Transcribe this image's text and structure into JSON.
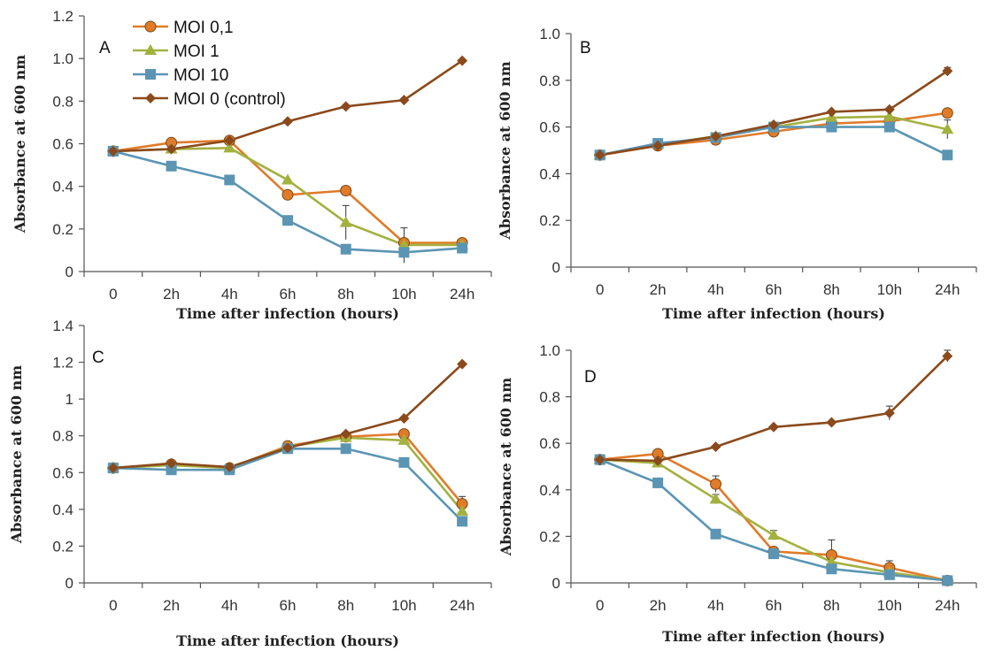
{
  "series_styles": [
    {
      "name": "MOI 0,1",
      "color": "#e07b2a",
      "marker": "circle"
    },
    {
      "name": "MOI 1",
      "color": "#a3b13f",
      "marker": "triangle"
    },
    {
      "name": "MOI 10",
      "color": "#5b95b3",
      "marker": "square"
    },
    {
      "name": "MOI 0 (control)",
      "color": "#8b4a1c",
      "marker": "diamond"
    }
  ],
  "chart_data": [
    {
      "type": "line",
      "panel": "A",
      "xlabel": "Time after infection (hours)",
      "ylabel": "Absorbance at 600 nm",
      "categories": [
        "0",
        "2h",
        "4h",
        "6h",
        "8h",
        "10h",
        "24h"
      ],
      "ylim": [
        0,
        1.2
      ],
      "yticks": [
        "0",
        "0.2",
        "0.4",
        "0.6",
        "0.8",
        "1.0",
        "1.2"
      ],
      "legend": "top-left",
      "series": [
        {
          "name": "MOI 0,1",
          "values": [
            0.565,
            0.605,
            0.615,
            0.36,
            0.38,
            0.135,
            0.135
          ],
          "errors": [
            0,
            0,
            0,
            0,
            0,
            0.07,
            0
          ]
        },
        {
          "name": "MOI 1",
          "values": [
            0.565,
            0.575,
            0.58,
            0.43,
            0.23,
            0.125,
            0.125
          ],
          "errors": [
            0,
            0,
            0,
            0,
            0.08,
            0,
            0
          ]
        },
        {
          "name": "MOI 10",
          "values": [
            0.565,
            0.495,
            0.43,
            0.24,
            0.105,
            0.09,
            0.11
          ],
          "errors": [
            0,
            0,
            0,
            0,
            0,
            0.05,
            0
          ]
        },
        {
          "name": "MOI 0 (control)",
          "values": [
            0.565,
            0.575,
            0.615,
            0.705,
            0.775,
            0.805,
            0.99
          ],
          "errors": [
            0,
            0,
            0,
            0,
            0,
            0,
            0
          ]
        }
      ]
    },
    {
      "type": "line",
      "panel": "B",
      "xlabel": "Time after infection (hours)",
      "ylabel": "Absorbance at 600 nm",
      "categories": [
        "0",
        "2h",
        "4h",
        "6h",
        "8h",
        "10h",
        "24h"
      ],
      "ylim": [
        0,
        1.0
      ],
      "yticks": [
        "0",
        "0.2",
        "0.4",
        "0.6",
        "0.8",
        "1.0"
      ],
      "series": [
        {
          "name": "MOI 0,1",
          "values": [
            0.48,
            0.52,
            0.545,
            0.58,
            0.615,
            0.625,
            0.66
          ],
          "errors": [
            0,
            0,
            0,
            0,
            0,
            0,
            0
          ]
        },
        {
          "name": "MOI 1",
          "values": [
            0.48,
            0.525,
            0.56,
            0.6,
            0.64,
            0.645,
            0.59
          ],
          "errors": [
            0,
            0,
            0,
            0,
            0,
            0,
            0.04
          ]
        },
        {
          "name": "MOI 10",
          "values": [
            0.48,
            0.53,
            0.555,
            0.6,
            0.6,
            0.6,
            0.48
          ],
          "errors": [
            0,
            0,
            0,
            0,
            0,
            0,
            0
          ]
        },
        {
          "name": "MOI 0 (control)",
          "values": [
            0.48,
            0.52,
            0.56,
            0.61,
            0.665,
            0.675,
            0.84
          ],
          "errors": [
            0,
            0,
            0,
            0,
            0,
            0,
            0.015
          ]
        }
      ]
    },
    {
      "type": "line",
      "panel": "C",
      "xlabel": "Time after infection (hours)",
      "ylabel": "Absorbance at 600 nm",
      "categories": [
        "0",
        "2h",
        "4h",
        "6h",
        "8h",
        "10h",
        "24h"
      ],
      "ylim": [
        0,
        1.4
      ],
      "yticks": [
        "0",
        "0.2",
        "0.4",
        "0.6",
        "0.8",
        "1",
        "1.2",
        "1.4"
      ],
      "series": [
        {
          "name": "MOI 0,1",
          "values": [
            0.625,
            0.645,
            0.625,
            0.745,
            0.795,
            0.81,
            0.43
          ],
          "errors": [
            0,
            0,
            0,
            0,
            0,
            0,
            0.04
          ]
        },
        {
          "name": "MOI 1",
          "values": [
            0.625,
            0.64,
            0.625,
            0.74,
            0.79,
            0.775,
            0.39
          ],
          "errors": [
            0,
            0,
            0,
            0,
            0,
            0,
            0
          ]
        },
        {
          "name": "MOI 10",
          "values": [
            0.625,
            0.615,
            0.615,
            0.73,
            0.73,
            0.655,
            0.335
          ],
          "errors": [
            0,
            0,
            0,
            0,
            0,
            0,
            0
          ]
        },
        {
          "name": "MOI 0 (control)",
          "values": [
            0.625,
            0.65,
            0.63,
            0.735,
            0.81,
            0.895,
            1.19
          ],
          "errors": [
            0,
            0,
            0,
            0,
            0,
            0,
            0
          ]
        }
      ]
    },
    {
      "type": "line",
      "panel": "D",
      "xlabel": "Time after infection (hours)",
      "ylabel": "Absorbance at  600 nm",
      "categories": [
        "0",
        "2h",
        "4h",
        "6h",
        "8h",
        "10h",
        "24h"
      ],
      "ylim": [
        0,
        1.0
      ],
      "yticks": [
        "0",
        "0.2",
        "0.4",
        "0.6",
        "0.8",
        "1.0"
      ],
      "series": [
        {
          "name": "MOI 0,1",
          "values": [
            0.53,
            0.555,
            0.425,
            0.135,
            0.12,
            0.065,
            0.01
          ],
          "errors": [
            0,
            0,
            0.035,
            0,
            0.065,
            0.03,
            0
          ]
        },
        {
          "name": "MOI 1",
          "values": [
            0.53,
            0.515,
            0.36,
            0.205,
            0.09,
            0.045,
            0.01
          ],
          "errors": [
            0,
            0,
            0.02,
            0.02,
            0,
            0,
            0
          ]
        },
        {
          "name": "MOI 10",
          "values": [
            0.53,
            0.43,
            0.21,
            0.125,
            0.06,
            0.035,
            0.01
          ],
          "errors": [
            0,
            0,
            0,
            0,
            0,
            0,
            0
          ]
        },
        {
          "name": "MOI 0 (control)",
          "values": [
            0.53,
            0.525,
            0.585,
            0.67,
            0.69,
            0.73,
            0.975
          ],
          "errors": [
            0,
            0,
            0,
            0,
            0,
            0.03,
            0.025
          ]
        }
      ]
    }
  ]
}
